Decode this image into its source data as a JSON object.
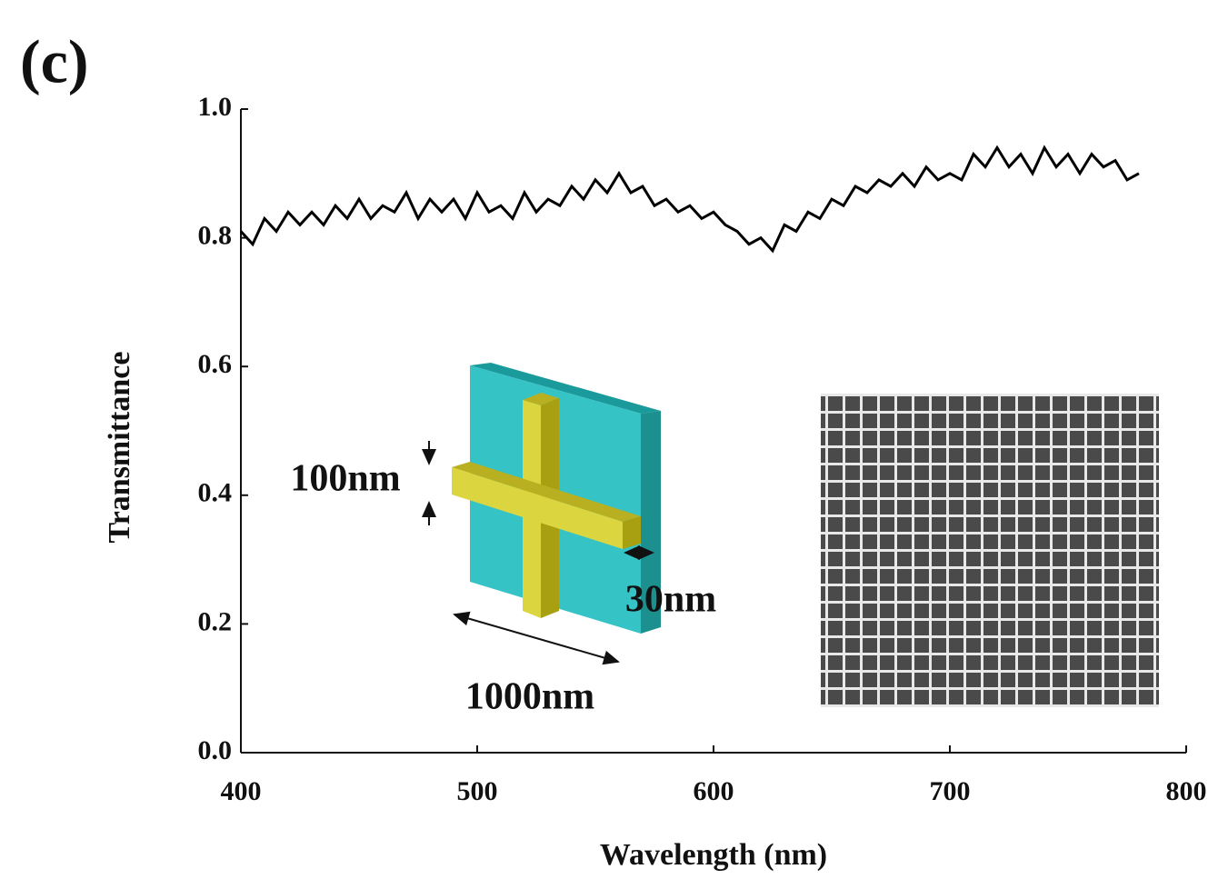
{
  "chart_data": {
    "type": "line",
    "panel_label": "(c)",
    "x_label": "Wavelength (nm)",
    "y_label": "Transmittance",
    "xlim": [
      400,
      800
    ],
    "xticks": [
      400,
      500,
      600,
      700,
      800
    ],
    "ylim": [
      0,
      1
    ],
    "yticks": [
      {
        "value": 0,
        "label": "0.0"
      },
      0.2,
      0.4,
      0.6,
      0.8,
      {
        "value": 1,
        "label": "1.0"
      }
    ],
    "annotations": [
      "100nm",
      "30nm",
      "1000nm"
    ],
    "series": [
      {
        "color": "#000000",
        "x": [
          400,
          405,
          410,
          415,
          420,
          425,
          430,
          435,
          440,
          445,
          450,
          455,
          460,
          465,
          470,
          475,
          480,
          485,
          490,
          495,
          500,
          505,
          510,
          515,
          520,
          525,
          530,
          535,
          540,
          545,
          550,
          555,
          560,
          565,
          570,
          575,
          580,
          585,
          590,
          595,
          600,
          605,
          610,
          615,
          620,
          625,
          630,
          635,
          640,
          645,
          650,
          655,
          660,
          665,
          670,
          675,
          680,
          685,
          690,
          695,
          700,
          705,
          710,
          715,
          720,
          725,
          730,
          735,
          740,
          745,
          750,
          755,
          760,
          765,
          770,
          775,
          780
        ],
        "values": [
          0.81,
          0.79,
          0.83,
          0.81,
          0.84,
          0.82,
          0.84,
          0.82,
          0.85,
          0.83,
          0.86,
          0.83,
          0.85,
          0.84,
          0.87,
          0.83,
          0.86,
          0.84,
          0.86,
          0.83,
          0.87,
          0.84,
          0.85,
          0.83,
          0.87,
          0.84,
          0.86,
          0.85,
          0.88,
          0.86,
          0.89,
          0.87,
          0.9,
          0.87,
          0.88,
          0.85,
          0.86,
          0.84,
          0.85,
          0.83,
          0.84,
          0.82,
          0.81,
          0.79,
          0.8,
          0.78,
          0.82,
          0.81,
          0.84,
          0.83,
          0.86,
          0.85,
          0.88,
          0.87,
          0.89,
          0.88,
          0.9,
          0.88,
          0.91,
          0.89,
          0.9,
          0.89,
          0.93,
          0.91,
          0.94,
          0.91,
          0.93,
          0.9,
          0.94,
          0.91,
          0.93,
          0.9,
          0.93,
          0.91,
          0.92,
          0.89,
          0.9
        ]
      }
    ]
  }
}
